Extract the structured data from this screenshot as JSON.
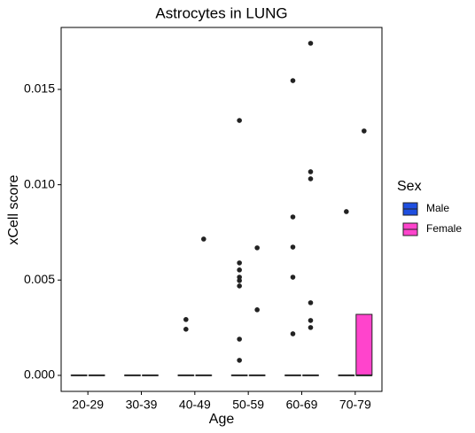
{
  "chart_data": {
    "type": "boxplot",
    "title": "Astrocytes in LUNG",
    "x_label": "Age",
    "y_label": "xCell score",
    "categories": [
      "20-29",
      "30-39",
      "40-49",
      "50-59",
      "60-69",
      "70-79"
    ],
    "ylim": [
      -0.00084,
      0.01825
    ],
    "yticks": [
      {
        "value": 0,
        "label": "0.000"
      },
      {
        "value": 0.005,
        "label": "0.005"
      },
      {
        "value": 0.01,
        "label": "0.010"
      },
      {
        "value": 0.015,
        "label": "0.015"
      }
    ],
    "legend_title": "Sex",
    "legend_position": "right",
    "grid": false,
    "series": [
      {
        "name": "Male",
        "color": "#1f4fe0",
        "boxes": [
          {
            "min": 0,
            "q1": 0,
            "median": 0,
            "q3": 0,
            "max": 0,
            "outliers": []
          },
          {
            "min": 0,
            "q1": 0,
            "median": 0,
            "q3": 0,
            "max": 0,
            "outliers": []
          },
          {
            "min": 0,
            "q1": 0,
            "median": 0,
            "q3": 0,
            "max": 0,
            "outliers": [
              0.00293,
              0.00242
            ]
          },
          {
            "min": 0,
            "q1": 0,
            "median": 0,
            "q3": 0,
            "max": 0,
            "outliers": [
              0.01337,
              0.0059,
              0.00553,
              0.00515,
              0.00497,
              0.00469,
              0.0019,
              0.00079
            ]
          },
          {
            "min": 0,
            "q1": 0,
            "median": 0,
            "q3": 0,
            "max": 0,
            "outliers": [
              0.01546,
              0.00831,
              0.00673,
              0.00515,
              0.00218
            ]
          },
          {
            "min": 0,
            "q1": 0,
            "median": 0,
            "q3": 0,
            "max": 0,
            "outliers": [
              0.00859
            ]
          }
        ]
      },
      {
        "name": "Female",
        "color": "#ff44cc",
        "boxes": [
          {
            "min": 0,
            "q1": 0,
            "median": 0,
            "q3": 0,
            "max": 0,
            "outliers": []
          },
          {
            "min": 0,
            "q1": 0,
            "median": 0,
            "q3": 0,
            "max": 0,
            "outliers": []
          },
          {
            "min": 0,
            "q1": 0,
            "median": 0,
            "q3": 0,
            "max": 0,
            "outliers": [
              0.00715
            ]
          },
          {
            "min": 0,
            "q1": 0,
            "median": 0,
            "q3": 0,
            "max": 0,
            "outliers": [
              0.00669,
              0.00344
            ]
          },
          {
            "min": 0,
            "q1": 0,
            "median": 0,
            "q3": 0,
            "max": 0,
            "outliers": [
              0.01742,
              0.01068,
              0.01031,
              0.00381,
              0.00288,
              0.00251
            ]
          },
          {
            "min": 0,
            "q1": 0,
            "median": 0,
            "q3": 0.0032,
            "max": 0.0032,
            "outliers": [
              0.01282
            ]
          }
        ]
      }
    ]
  }
}
